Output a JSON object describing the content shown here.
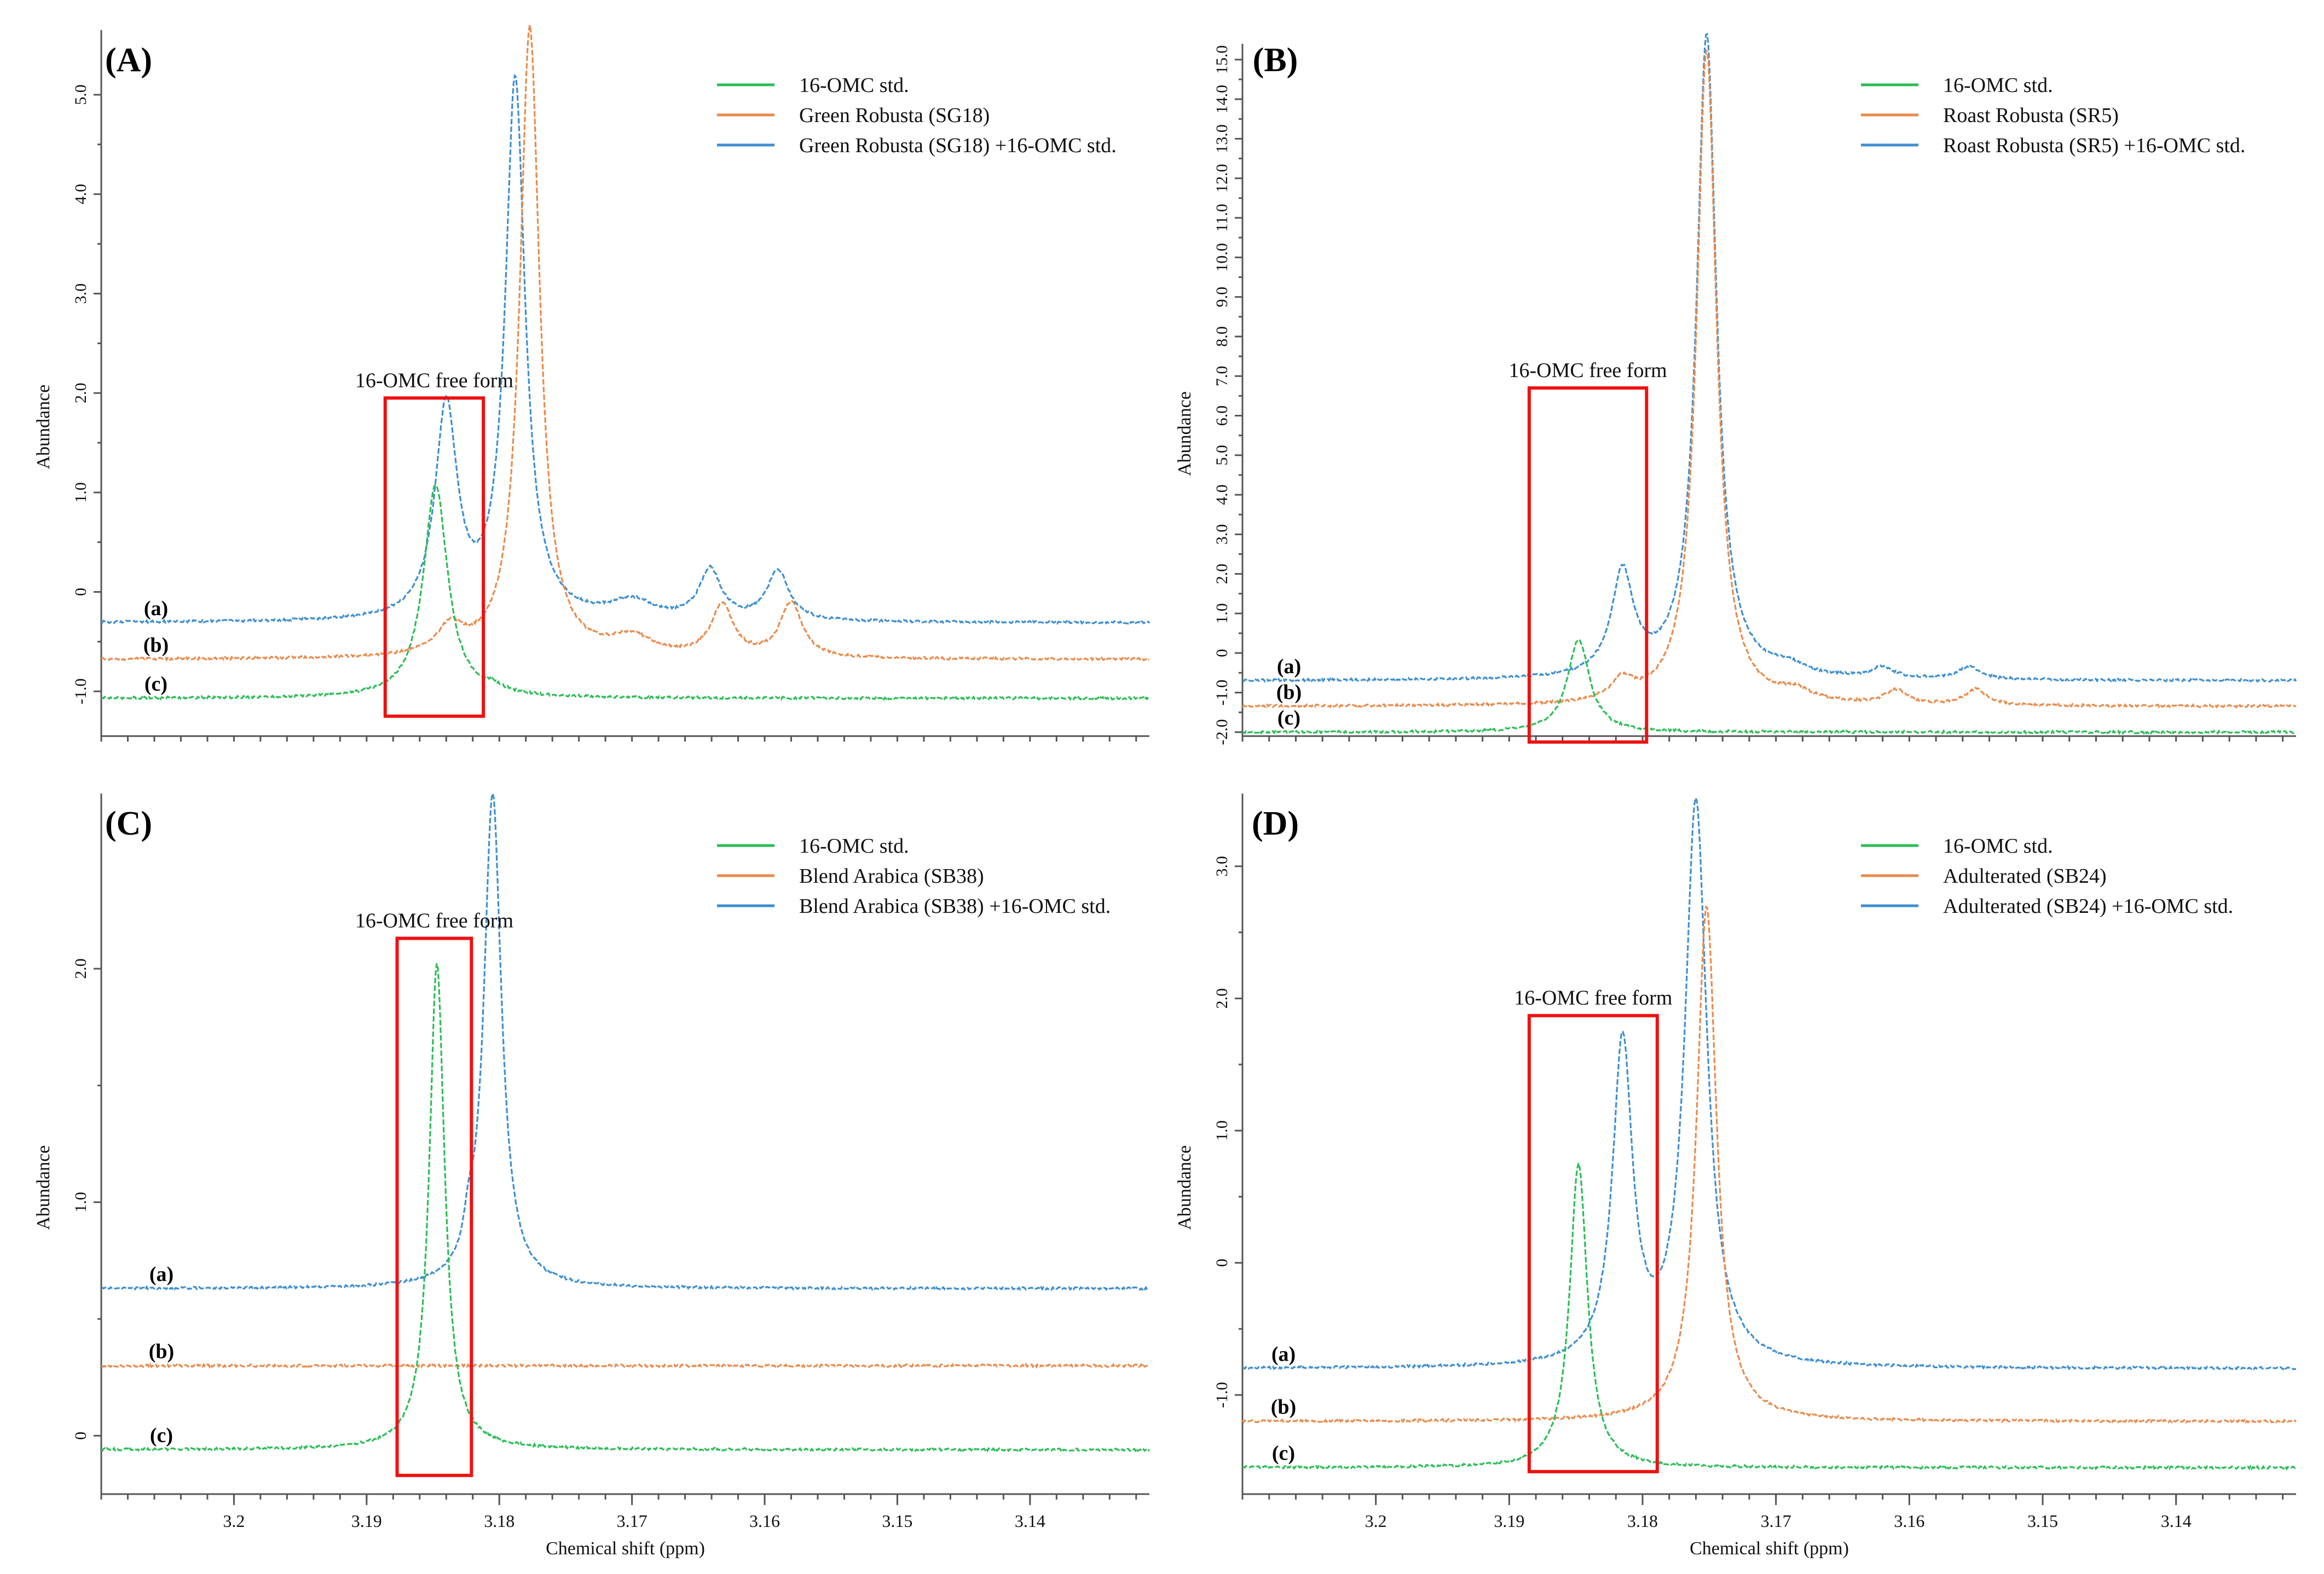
{
  "colors": {
    "std": "#2bbd57",
    "sample": "#e98a4a",
    "spiked": "#3d8fd1",
    "highlight": "#ee1111"
  },
  "chart_data": [
    {
      "type": "line",
      "panel": "(A)",
      "xlabel": "",
      "ylabel": "Abundance",
      "xlim": [
        3.21,
        3.131
      ],
      "ylim": [
        -1.45,
        5.65
      ],
      "xticks": [],
      "yticks": [
        -1.0,
        0,
        1.0,
        2.0,
        3.0,
        4.0,
        5.0
      ],
      "ytick_labels": [
        "-1.0",
        "0",
        "1.0",
        "2.0",
        "3.0",
        "4.0",
        "5.0"
      ],
      "box_label": "16-OMC free form",
      "box_range": {
        "x": [
          3.1886,
          3.1812
        ],
        "y": [
          -1.25,
          1.95
        ]
      },
      "trace_labels": [
        "(a)",
        "(b)",
        "(c)"
      ],
      "series": [
        {
          "name": "16-OMC std.",
          "role": "std",
          "label": "(c)",
          "baseline": -1.07,
          "peaks": [
            [
              3.1848,
              2.15,
              0.0011
            ],
            [
              3.1805,
              0.06,
              0.001
            ]
          ]
        },
        {
          "name": "Green Robusta (SG18)",
          "role": "sample",
          "label": "(b)",
          "baseline": -0.68,
          "peaks": [
            [
              3.1837,
              0.27,
              0.0012
            ],
            [
              3.1777,
              6.35,
              0.0009
            ],
            [
              3.17,
              0.18,
              0.002
            ],
            [
              3.1632,
              0.52,
              0.001
            ],
            [
              3.158,
              0.55,
              0.001
            ]
          ]
        },
        {
          "name": "Green Robusta (SG18) +16-OMC std.",
          "role": "spiked",
          "label": "(a)",
          "baseline": -0.31,
          "peaks": [
            [
              3.184,
              2.12,
              0.001
            ],
            [
              3.1788,
              5.42,
              0.0009
            ],
            [
              3.17,
              0.18,
              0.002
            ],
            [
              3.1641,
              0.5,
              0.001
            ],
            [
              3.159,
              0.5,
              0.001
            ]
          ]
        }
      ]
    },
    {
      "type": "line",
      "panel": "(B)",
      "xlabel": "",
      "ylabel": "Abundance",
      "xlim": [
        3.21,
        3.131
      ],
      "ylim": [
        -2.1,
        15.4
      ],
      "xticks": [],
      "yticks": [
        -2.0,
        -1.0,
        0,
        1.0,
        2.0,
        3.0,
        4.0,
        5.0,
        6.0,
        7.0,
        8.0,
        9.0,
        10.0,
        11.0,
        12.0,
        13.0,
        14.0,
        15.0
      ],
      "ytick_labels": [
        "-2.0",
        "-1.0",
        "0",
        "1.0",
        "2.0",
        "3.0",
        "4.0",
        "5.0",
        "6.0",
        "7.0",
        "8.0",
        "9.0",
        "10.0",
        "11.0",
        "12.0",
        "13.0",
        "14.0",
        "15.0"
      ],
      "box_label": "16-OMC free form",
      "box_range": {
        "x": [
          3.1885,
          3.1797
        ],
        "y": [
          -2.25,
          6.7
        ]
      },
      "trace_labels": [
        "(a)",
        "(b)",
        "(c)"
      ],
      "series": [
        {
          "name": "16-OMC std.",
          "role": "std",
          "label": "(c)",
          "baseline": -2.0,
          "peaks": [
            [
              3.1848,
              2.35,
              0.001
            ]
          ]
        },
        {
          "name": "Roast Robusta (SR5)",
          "role": "sample",
          "label": "(b)",
          "baseline": -1.35,
          "peaks": [
            [
              3.1815,
              0.5,
              0.001
            ],
            [
              3.1752,
              16.6,
              0.0009
            ],
            [
              3.1685,
              0.25,
              0.0015
            ],
            [
              3.161,
              0.35,
              0.001
            ],
            [
              3.155,
              0.4,
              0.001
            ]
          ]
        },
        {
          "name": "Roast Robusta (SR5) +16-OMC std.",
          "role": "spiked",
          "label": "(a)",
          "baseline": -0.7,
          "peaks": [
            [
              3.1815,
              2.6,
              0.001
            ],
            [
              3.1752,
              16.3,
              0.0009
            ],
            [
              3.169,
              0.22,
              0.0015
            ],
            [
              3.162,
              0.28,
              0.001
            ],
            [
              3.1555,
              0.32,
              0.001
            ]
          ]
        }
      ]
    },
    {
      "type": "line",
      "panel": "(C)",
      "xlabel": "Chemical shift (ppm)",
      "ylabel": "Abundance",
      "xlim": [
        3.21,
        3.131
      ],
      "ylim": [
        -0.25,
        2.75
      ],
      "xticks": [
        3.2,
        3.19,
        3.18,
        3.17,
        3.16,
        3.15,
        3.14
      ],
      "xtick_labels": [
        "3.2",
        "3.19",
        "3.18",
        "3.17",
        "3.16",
        "3.15",
        "3.14"
      ],
      "yticks": [
        0,
        1.0,
        2.0
      ],
      "ytick_labels": [
        "0",
        "1.0",
        "2.0"
      ],
      "box_label": "16-OMC free form",
      "box_range": {
        "x": [
          3.1877,
          3.1821
        ],
        "y": [
          -0.17,
          2.13
        ]
      },
      "trace_labels": [
        "(a)",
        "(b)",
        "(c)"
      ],
      "series": [
        {
          "name": "16-OMC std.",
          "role": "std",
          "label": "(c)",
          "baseline": -0.06,
          "peaks": [
            [
              3.1847,
              2.08,
              0.0007
            ]
          ]
        },
        {
          "name": "Blend Arabica (SB38)",
          "role": "sample",
          "label": "(b)",
          "baseline": 0.3,
          "peaks": []
        },
        {
          "name": "Blend Arabica (SB38) +16-OMC std.",
          "role": "spiked",
          "label": "(a)",
          "baseline": 0.63,
          "peaks": [
            [
              3.1823,
              0.12,
              0.0004
            ],
            [
              3.1805,
              2.12,
              0.0008
            ]
          ]
        }
      ]
    },
    {
      "type": "line",
      "panel": "(D)",
      "xlabel": "Chemical shift (ppm)",
      "ylabel": "Abundance",
      "xlim": [
        3.21,
        3.131
      ],
      "ylim": [
        -1.75,
        3.55
      ],
      "xticks": [
        3.2,
        3.19,
        3.18,
        3.17,
        3.16,
        3.15,
        3.14
      ],
      "xtick_labels": [
        "3.2",
        "3.19",
        "3.18",
        "3.17",
        "3.16",
        "3.15",
        "3.14"
      ],
      "yticks": [
        -1.0,
        0,
        1.0,
        2.0,
        3.0
      ],
      "ytick_labels": [
        "-1.0",
        "0",
        "1.0",
        "2.0",
        "3.0"
      ],
      "box_label": "16-OMC free form",
      "box_range": {
        "x": [
          3.1885,
          3.1789
        ],
        "y": [
          -1.58,
          1.87
        ]
      },
      "trace_labels": [
        "(a)",
        "(b)",
        "(c)"
      ],
      "series": [
        {
          "name": "16-OMC std.",
          "role": "std",
          "label": "(c)",
          "baseline": -1.55,
          "peaks": [
            [
              3.1848,
              2.3,
              0.0008
            ]
          ]
        },
        {
          "name": "Adulterated (SB24)",
          "role": "sample",
          "label": "(b)",
          "baseline": -1.2,
          "peaks": [
            [
              3.1752,
              3.9,
              0.0009
            ]
          ]
        },
        {
          "name": "Adulterated (SB24) +16-OMC std.",
          "role": "spiked",
          "label": "(a)",
          "baseline": -0.8,
          "peaks": [
            [
              3.1815,
              2.42,
              0.0009
            ],
            [
              3.176,
              4.25,
              0.001
            ]
          ]
        }
      ]
    }
  ]
}
